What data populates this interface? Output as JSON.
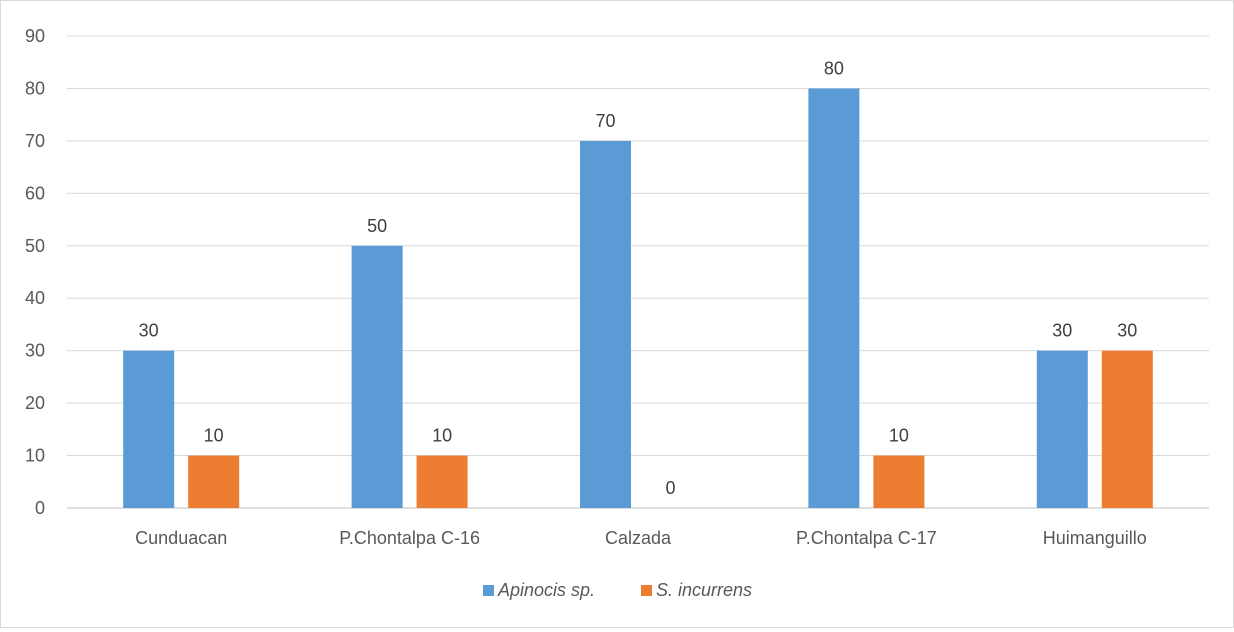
{
  "chart_data": {
    "type": "bar",
    "title": "",
    "xlabel": "",
    "ylabel": "",
    "categories": [
      "Cunduacan",
      "P.Chontalpa C-16",
      "Calzada",
      "P.Chontalpa C-17",
      "Huimanguillo"
    ],
    "series": [
      {
        "name": "Apinocis sp.",
        "color": "#5b9bd5",
        "values": [
          30,
          50,
          70,
          80,
          30
        ]
      },
      {
        "name": "S. incurrens",
        "color": "#ed7d31",
        "values": [
          10,
          10,
          0,
          10,
          30
        ]
      }
    ],
    "ylim": [
      0,
      90
    ],
    "yticks": [
      0,
      10,
      20,
      30,
      40,
      50,
      60,
      70,
      80,
      90
    ],
    "grid": true,
    "data_labels": true,
    "legend_position": "bottom"
  }
}
